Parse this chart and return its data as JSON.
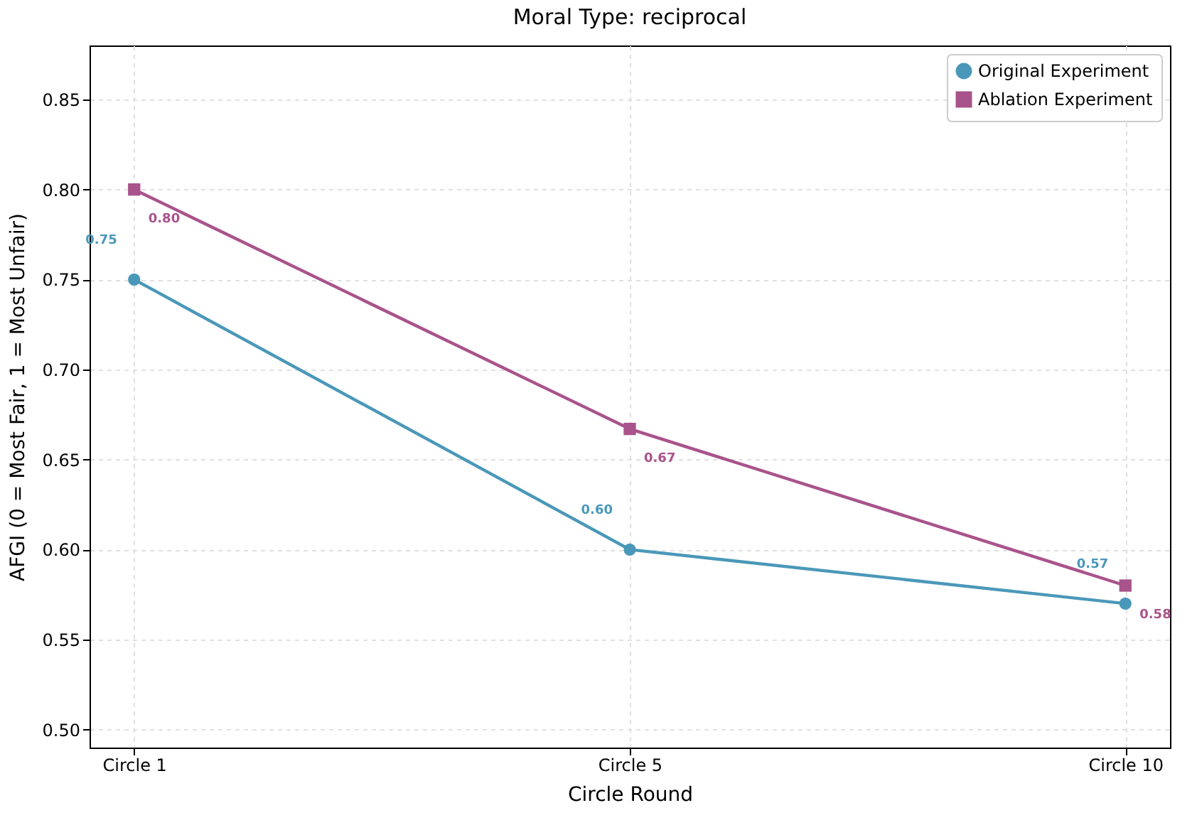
{
  "chart_data": {
    "type": "line",
    "title": "Moral Type: reciprocal",
    "xlabel": "Circle Round",
    "ylabel": "AFGI (0 = Most Fair, 1 = Most Unfair)",
    "categories": [
      "Circle 1",
      "Circle 5",
      "Circle 10"
    ],
    "ylim": [
      0.49,
      0.88
    ],
    "yticks": [
      {
        "value": 0.5,
        "label": "0.50"
      },
      0.55,
      {
        "value": 0.6,
        "label": "0.60"
      },
      0.65,
      {
        "value": 0.7,
        "label": "0.70"
      },
      0.75,
      {
        "value": 0.8,
        "label": "0.80"
      },
      0.85
    ],
    "series": [
      {
        "name": "Original Experiment",
        "color": "#4a98b9",
        "marker": "circle",
        "values": [
          0.75,
          0.6,
          0.57
        ],
        "value_labels": [
          "0.75",
          "0.60",
          "0.57"
        ]
      },
      {
        "name": "Ablation Experiment",
        "color": "#a9538b",
        "marker": "square",
        "values": [
          0.8,
          0.667,
          0.58
        ],
        "value_labels": [
          "0.80",
          "0.67",
          "0.58"
        ]
      }
    ],
    "grid": true,
    "legend": "top right",
    "line_style": "solid"
  }
}
